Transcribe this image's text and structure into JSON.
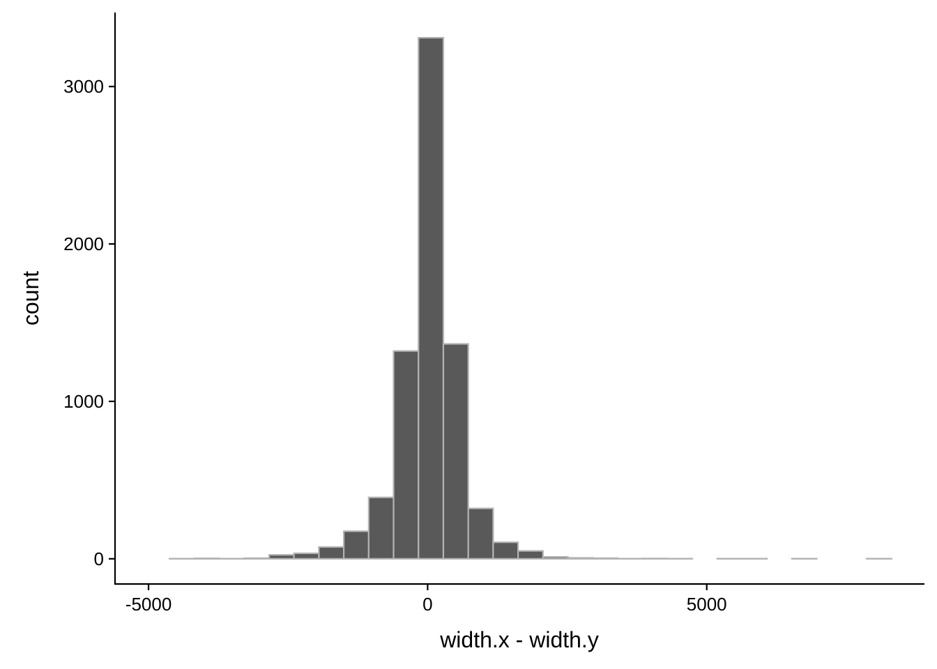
{
  "chart_data": {
    "type": "bar",
    "title": "",
    "xlabel": "width.x - width.y",
    "ylabel": "count",
    "xlim": [
      -5600,
      8900
    ],
    "ylim": [
      -160,
      3470
    ],
    "x_ticks": [
      -5000,
      0,
      5000
    ],
    "x_tick_labels": [
      "-5000",
      "0",
      "5000"
    ],
    "y_ticks": [
      0,
      1000,
      2000,
      3000
    ],
    "y_tick_labels": [
      "0",
      "1000",
      "2000",
      "3000"
    ],
    "grid": false,
    "bin_width": 446,
    "bins": [
      {
        "x0": -5070,
        "x1": -4624,
        "count": 0
      },
      {
        "x0": -4624,
        "x1": -4178,
        "count": 1
      },
      {
        "x0": -4178,
        "x1": -3732,
        "count": 3
      },
      {
        "x0": -3732,
        "x1": -3286,
        "count": 1
      },
      {
        "x0": -3286,
        "x1": -2840,
        "count": 4
      },
      {
        "x0": -2840,
        "x1": -2394,
        "count": 25
      },
      {
        "x0": -2394,
        "x1": -1948,
        "count": 35
      },
      {
        "x0": -1948,
        "x1": -1502,
        "count": 75
      },
      {
        "x0": -1502,
        "x1": -1056,
        "count": 175
      },
      {
        "x0": -1056,
        "x1": -610,
        "count": 390
      },
      {
        "x0": -610,
        "x1": -164,
        "count": 1320
      },
      {
        "x0": -164,
        "x1": 282,
        "count": 3310
      },
      {
        "x0": 282,
        "x1": 728,
        "count": 1365
      },
      {
        "x0": 728,
        "x1": 1174,
        "count": 320
      },
      {
        "x0": 1174,
        "x1": 1620,
        "count": 105
      },
      {
        "x0": 1620,
        "x1": 2066,
        "count": 50
      },
      {
        "x0": 2066,
        "x1": 2512,
        "count": 12
      },
      {
        "x0": 2512,
        "x1": 2958,
        "count": 6
      },
      {
        "x0": 2958,
        "x1": 3404,
        "count": 4
      },
      {
        "x0": 3404,
        "x1": 3850,
        "count": 1
      },
      {
        "x0": 3850,
        "x1": 4296,
        "count": 2
      },
      {
        "x0": 4296,
        "x1": 4742,
        "count": 1
      },
      {
        "x0": 4742,
        "x1": 5188,
        "count": 0
      },
      {
        "x0": 5188,
        "x1": 5634,
        "count": 1
      },
      {
        "x0": 5634,
        "x1": 6080,
        "count": 1
      },
      {
        "x0": 6080,
        "x1": 6526,
        "count": 0
      },
      {
        "x0": 6526,
        "x1": 6972,
        "count": 1
      },
      {
        "x0": 6972,
        "x1": 7418,
        "count": 0
      },
      {
        "x0": 7418,
        "x1": 7864,
        "count": 0
      },
      {
        "x0": 7864,
        "x1": 8310,
        "count": 1
      }
    ],
    "colors": {
      "bar_fill": "#595959",
      "bar_stroke": "#b3b3b3",
      "axis": "#000000",
      "background": "#ffffff"
    }
  }
}
